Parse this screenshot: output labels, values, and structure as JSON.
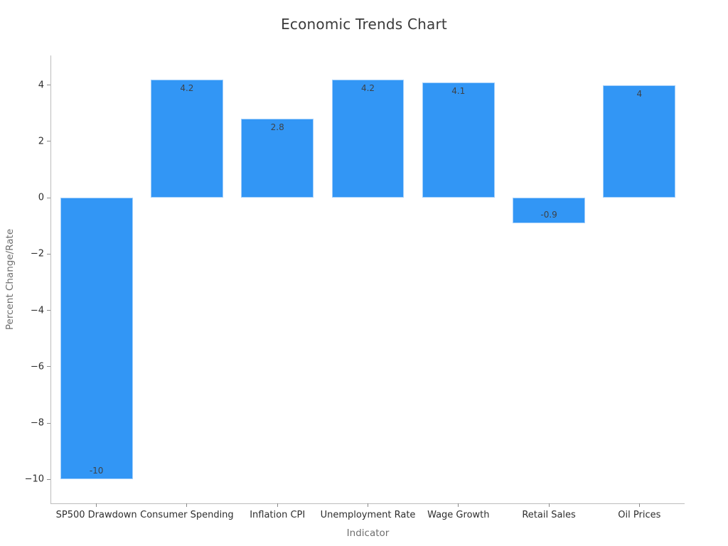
{
  "chart_data": {
    "type": "bar",
    "title": "Economic Trends Chart",
    "xlabel": "Indicator",
    "ylabel": "Percent Change/Rate",
    "categories": [
      "SP500 Drawdown",
      "Consumer Spending",
      "Inflation CPI",
      "Unemployment Rate",
      "Wage Growth",
      "Retail Sales",
      "Oil Prices"
    ],
    "values": [
      -10,
      4.2,
      2.8,
      4.2,
      4.1,
      -0.9,
      4
    ],
    "bar_labels": [
      "-10",
      "4.2",
      "2.8",
      "4.2",
      "4.1",
      "-0.9",
      "4"
    ],
    "ylim": [
      -10.85,
      5.05
    ],
    "yticks": [
      4,
      2,
      0,
      -2,
      -4,
      -6,
      -8,
      -10
    ],
    "ytick_labels": [
      "4",
      "2",
      "0",
      "−2",
      "−4",
      "−6",
      "−8",
      "−10"
    ],
    "grid": false,
    "legend": null,
    "bar_width_fraction": 0.8,
    "label_position": "inside-end",
    "colors": {
      "bar": "#3296f5",
      "title": "#3a3a3a",
      "tick_label": "#2e2e2e",
      "axis_label": "#6e6e6e",
      "spine": "#bdbdbd",
      "bar_label": "#3d4248",
      "background": "#ffffff"
    }
  }
}
